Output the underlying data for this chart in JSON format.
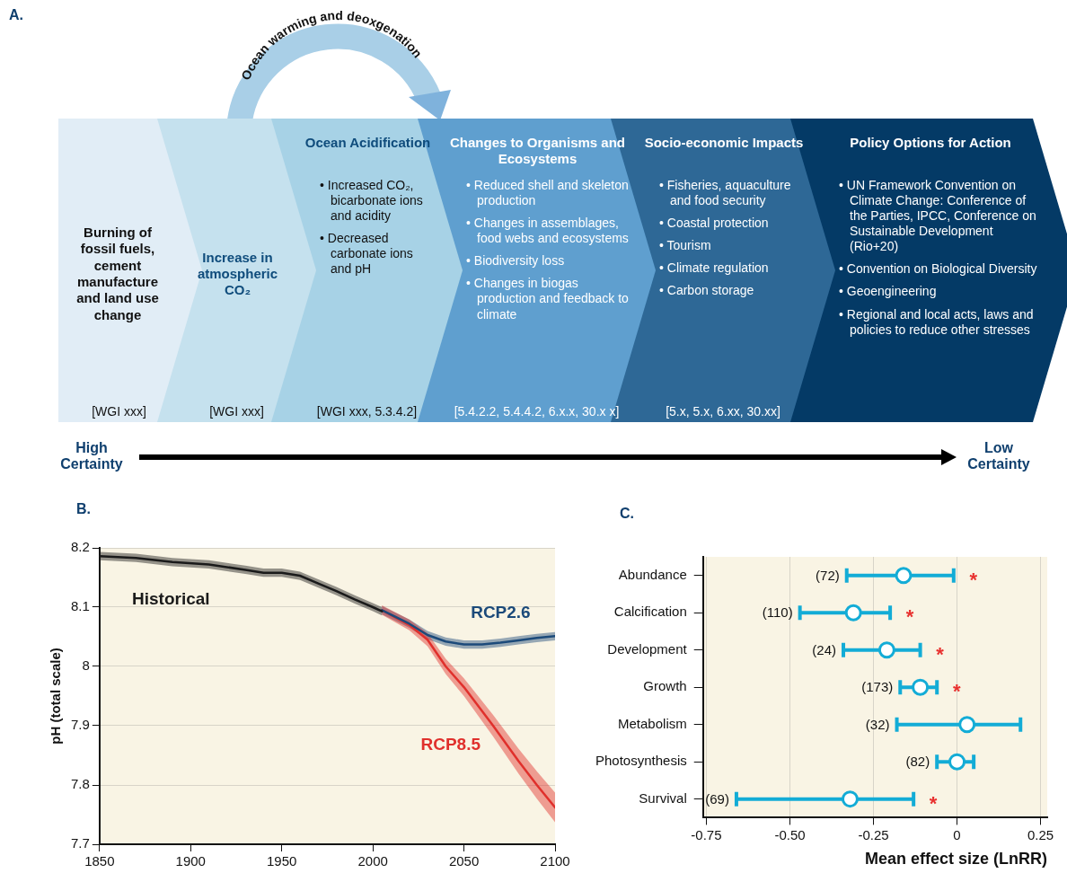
{
  "chart_data": [
    {
      "type": "other",
      "title": "A.",
      "categories": [
        null,
        null,
        "Ocean Acidification",
        "Changes to Organisms and Ecosystems",
        "Socio-economic Impacts",
        "Policy Options for Action"
      ],
      "colors": [
        "#e1edf6",
        "#c5e1ee",
        "#a7d2e6",
        "#5f9fcf",
        "#2e6896",
        "#043a66"
      ],
      "annotations": [
        "Burning of fossil fuels, cement manufacture and land use change",
        "Increase in atmospheric CO₂",
        "• Increased CO₂, bicarbonate ions and acidity\n• Decreased carbonate ions and pH",
        "• Reduced shell and skeleton production\n• Changes in assemblages, food webs and ecosystems\n• Biodiversity loss\n• Changes in biogas production and feedback to climate",
        "• Fisheries, aquaculture and food security\n• Coastal protection\n• Tourism\n• Climate regulation\n• Carbon storage",
        "• UN Framework Convention on Climate Change: Conference of the Parties, IPCC, Conference on Sustainable Development (Rio+20)\n• Convention on Biological Diversity\n• Geoengineering\n• Regional and local acts, laws and policies to reduce other stresses",
        "[WGI xxx]",
        "[WGI xxx]",
        "[WGI xxx, 5.3.4.2]",
        "[5.4.2.2, 5.4.4.2, 6.x.x, 30.x x]",
        "[5.x, 5.x, 6.xx, 30.xx]",
        "Ocean warming and deoxgenation",
        "High Certainty",
        "Low Certainty"
      ]
    },
    {
      "type": "line",
      "title": "B.",
      "ylabel": "pH (total scale)",
      "xlim": [
        1850,
        2100
      ],
      "xticks": [
        1850,
        1900,
        1950,
        2000,
        2050,
        2100
      ],
      "ylim": [
        7.7,
        8.2
      ],
      "yticks": [
        7.7,
        7.8,
        7.9,
        8.0,
        8.1,
        8.2
      ],
      "grid": "y",
      "series": [
        {
          "name": "Historical",
          "color": "#1a1a1a",
          "x": [
            1850,
            1870,
            1890,
            1910,
            1930,
            1940,
            1950,
            1960,
            1970,
            1980,
            1990,
            2000,
            2005
          ],
          "values": [
            8.186,
            8.183,
            8.176,
            8.172,
            8.163,
            8.158,
            8.158,
            8.153,
            8.14,
            8.127,
            8.113,
            8.1,
            8.093
          ],
          "lower": [
            8.179,
            8.176,
            8.169,
            8.165,
            8.156,
            8.151,
            8.151,
            8.146,
            8.133,
            8.12,
            8.106,
            8.093,
            8.086
          ],
          "upper": [
            8.193,
            8.19,
            8.183,
            8.179,
            8.17,
            8.165,
            8.165,
            8.16,
            8.147,
            8.134,
            8.12,
            8.107,
            8.1
          ]
        },
        {
          "name": "RCP2.6",
          "color": "#1c4a7a",
          "x": [
            2005,
            2020,
            2030,
            2040,
            2050,
            2060,
            2070,
            2080,
            2090,
            2100
          ],
          "values": [
            8.095,
            8.072,
            8.053,
            8.042,
            8.037,
            8.037,
            8.04,
            8.044,
            8.048,
            8.051
          ],
          "lower": [
            8.088,
            8.065,
            8.046,
            8.035,
            8.03,
            8.03,
            8.033,
            8.037,
            8.041,
            8.044
          ],
          "upper": [
            8.102,
            8.079,
            8.06,
            8.049,
            8.044,
            8.044,
            8.047,
            8.051,
            8.055,
            8.058
          ]
        },
        {
          "name": "RCP8.5",
          "color": "#e0302c",
          "x": [
            2005,
            2020,
            2030,
            2040,
            2050,
            2066,
            2080,
            2090,
            2100
          ],
          "values": [
            8.095,
            8.07,
            8.045,
            8.0,
            7.965,
            7.9,
            7.84,
            7.8,
            7.762
          ],
          "lower": [
            8.087,
            8.061,
            8.034,
            7.987,
            7.95,
            7.882,
            7.819,
            7.777,
            7.737
          ],
          "upper": [
            8.103,
            8.079,
            8.056,
            8.013,
            7.98,
            7.918,
            7.861,
            7.823,
            7.787
          ]
        }
      ]
    },
    {
      "type": "scatter",
      "title": "C.",
      "xlabel": "Mean effect size (LnRR)",
      "orientation": "horizontal",
      "marker": "circle",
      "color": "#13acd6",
      "grid": "x",
      "categories": [
        "Abundance",
        "Calcification",
        "Development",
        "Growth",
        "Metabolism",
        "Photosynthesis",
        "Survival"
      ],
      "values": [
        -0.16,
        -0.31,
        -0.21,
        -0.11,
        0.03,
        0,
        -0.32
      ],
      "errors": [
        [
          -0.33,
          -0.01
        ],
        [
          -0.47,
          -0.2
        ],
        [
          -0.34,
          -0.11
        ],
        [
          -0.17,
          -0.06
        ],
        [
          -0.18,
          0.19
        ],
        [
          -0.06,
          0.05
        ],
        [
          -0.66,
          -0.13
        ]
      ],
      "xlim": [
        -0.76,
        0.27
      ],
      "xticks": [
        -0.75,
        {
          "value": -0.5,
          "label": "-0.50"
        },
        -0.25,
        0,
        0.25
      ],
      "annotations": [
        {
          "text": "(72)",
          "x": -0.33,
          "y": "Abundance"
        },
        {
          "text": "(110)",
          "x": -0.47,
          "y": "Calcification"
        },
        {
          "text": "(24)",
          "x": -0.34,
          "y": "Development"
        },
        {
          "text": "(173)",
          "x": -0.17,
          "y": "Growth"
        },
        {
          "text": "(32)",
          "x": -0.18,
          "y": "Metabolism"
        },
        {
          "text": "(82)",
          "x": -0.06,
          "y": "Photosynthesis"
        },
        {
          "text": "(69)",
          "x": -0.66,
          "y": "Survival"
        },
        {
          "text": "*",
          "x": -0.01,
          "y": "Abundance"
        },
        {
          "text": "*",
          "x": -0.2,
          "y": "Calcification"
        },
        {
          "text": "*",
          "x": -0.11,
          "y": "Development"
        },
        {
          "text": "*",
          "x": -0.06,
          "y": "Growth"
        },
        {
          "text": "*",
          "x": -0.13,
          "y": "Survival"
        }
      ]
    }
  ]
}
